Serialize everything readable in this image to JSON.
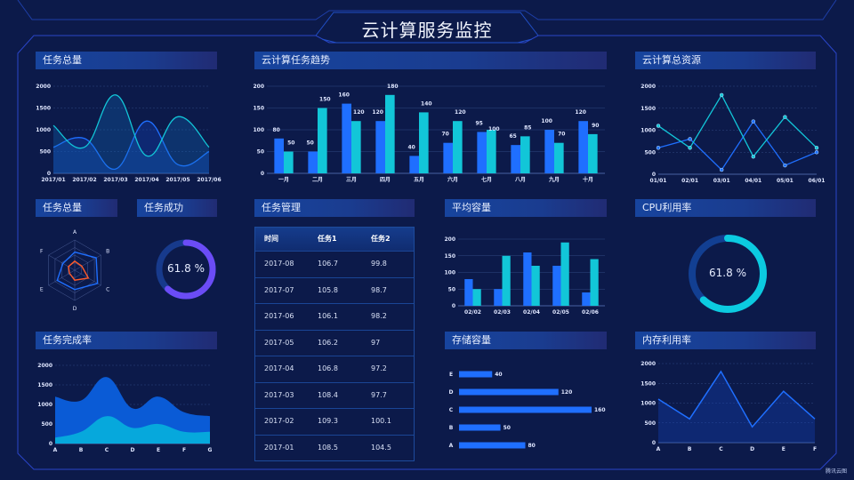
{
  "header": {
    "title": "云计算服务监控"
  },
  "colors": {
    "background": "#0c1a4a",
    "blue": "#1f6fff",
    "cyan": "#12c6d8",
    "purple": "#6b4cf6",
    "radar_red": "#ff5a2a",
    "frame": "#2a45c8"
  },
  "table": {
    "title": "任务管理",
    "columns": [
      "时间",
      "任务1",
      "任务2"
    ],
    "rows": [
      [
        "2017-08",
        "106.7",
        "99.8"
      ],
      [
        "2017-07",
        "105.8",
        "98.7"
      ],
      [
        "2017-06",
        "106.1",
        "98.2"
      ],
      [
        "2017-05",
        "106.2",
        "97"
      ],
      [
        "2017-04",
        "106.8",
        "97.2"
      ],
      [
        "2017-03",
        "108.4",
        "97.7"
      ],
      [
        "2017-02",
        "109.3",
        "100.1"
      ],
      [
        "2017-01",
        "108.5",
        "104.5"
      ]
    ]
  },
  "watermark": "腾讯云图",
  "chart_data": [
    {
      "title": "任务总量",
      "type": "area",
      "smooth": true,
      "categories": [
        "2017/01",
        "2017/02",
        "2017/03",
        "2017/04",
        "2017/05",
        "2017/06"
      ],
      "series": [
        {
          "values": [
            600,
            800,
            100,
            1200,
            200,
            500
          ],
          "color": "#1f6fff"
        },
        {
          "values": [
            1100,
            600,
            1800,
            400,
            1300,
            600
          ],
          "color": "#12c6d8"
        }
      ],
      "ylim": [
        0,
        2000
      ],
      "yticks": [
        0,
        500,
        1000,
        1500,
        2000
      ],
      "grid": true
    },
    {
      "title": "云计算任务趋势",
      "type": "bar",
      "categories": [
        "一月",
        "二月",
        "三月",
        "四月",
        "五月",
        "六月",
        "七月",
        "八月",
        "九月",
        "十月"
      ],
      "series": [
        {
          "values": [
            80,
            50,
            160,
            120,
            40,
            70,
            95,
            65,
            100,
            120
          ],
          "color": "#1f6fff"
        },
        {
          "values": [
            50,
            150,
            120,
            180,
            140,
            120,
            100,
            85,
            70,
            90
          ],
          "color": "#12c6d8"
        }
      ],
      "ylim": [
        0,
        200
      ],
      "yticks": [
        0,
        50,
        100,
        150,
        200
      ],
      "data_labels": true,
      "grid": true
    },
    {
      "title": "云计算总资源",
      "type": "line",
      "categories": [
        "01/01",
        "02/01",
        "03/01",
        "04/01",
        "05/01",
        "06/01"
      ],
      "series": [
        {
          "values": [
            600,
            800,
            100,
            1200,
            200,
            500
          ],
          "color": "#1f6fff"
        },
        {
          "values": [
            1100,
            600,
            1800,
            400,
            1300,
            600
          ],
          "color": "#12c6d8"
        }
      ],
      "ylim": [
        0,
        2000
      ],
      "yticks": [
        0,
        500,
        1000,
        1500,
        2000
      ],
      "markers": true,
      "grid": true
    },
    {
      "title": "任务总量",
      "type": "radar",
      "indicators": [
        "A",
        "B",
        "C",
        "D",
        "E",
        "F"
      ],
      "max": 100,
      "series": [
        {
          "values": [
            60,
            82,
            87,
            64,
            67,
            45
          ],
          "color": "#1f6fff"
        },
        {
          "values": [
            30,
            27,
            52,
            33,
            20,
            24
          ],
          "color": "#ff5a2a"
        }
      ]
    },
    {
      "title": "任务成功",
      "type": "gauge",
      "value": 61.8,
      "label": "61.8 %",
      "color": "#6b4cf6",
      "track": "#173a8c"
    },
    {
      "title": "平均容量",
      "type": "bar",
      "categories": [
        "02/02",
        "02/03",
        "02/04",
        "02/05",
        "02/06"
      ],
      "series": [
        {
          "values": [
            80,
            50,
            160,
            120,
            40
          ],
          "color": "#1f6fff"
        },
        {
          "values": [
            50,
            150,
            120,
            190,
            140
          ],
          "color": "#12c6d8"
        }
      ],
      "ylim": [
        0,
        200
      ],
      "yticks": [
        0,
        50,
        100,
        150,
        200
      ],
      "grid": true
    },
    {
      "title": "CPU利用率",
      "type": "gauge",
      "value": 61.8,
      "label": "61.8 %",
      "color": "#0ccbe0",
      "track": "#123f92"
    },
    {
      "title": "任务完成率",
      "type": "area",
      "stacked": true,
      "smooth": true,
      "categories": [
        "A",
        "B",
        "C",
        "D",
        "E",
        "F",
        "G"
      ],
      "series": [
        {
          "values": [
            150,
            300,
            700,
            400,
            500,
            300,
            300
          ],
          "color": "#06a8dc"
        },
        {
          "values": [
            1050,
            800,
            1000,
            500,
            700,
            500,
            400
          ],
          "color": "#0a5bd6"
        }
      ],
      "ylim": [
        0,
        2000
      ],
      "yticks": [
        0,
        500,
        1000,
        1500,
        2000
      ],
      "grid": true
    },
    {
      "title": "存储容量",
      "type": "bar",
      "orientation": "horizontal",
      "categories": [
        "A",
        "B",
        "C",
        "D",
        "E"
      ],
      "values": [
        80,
        50,
        160,
        120,
        40
      ],
      "color": "#1f6fff",
      "data_labels": true
    },
    {
      "title": "内存利用率",
      "type": "area",
      "categories": [
        "A",
        "B",
        "C",
        "D",
        "E",
        "F"
      ],
      "series": [
        {
          "values": [
            1100,
            600,
            1800,
            400,
            1300,
            600
          ],
          "color": "#1f6fff"
        }
      ],
      "ylim": [
        0,
        2000
      ],
      "yticks": [
        0,
        500,
        1000,
        1500,
        2000
      ],
      "grid": true
    }
  ]
}
